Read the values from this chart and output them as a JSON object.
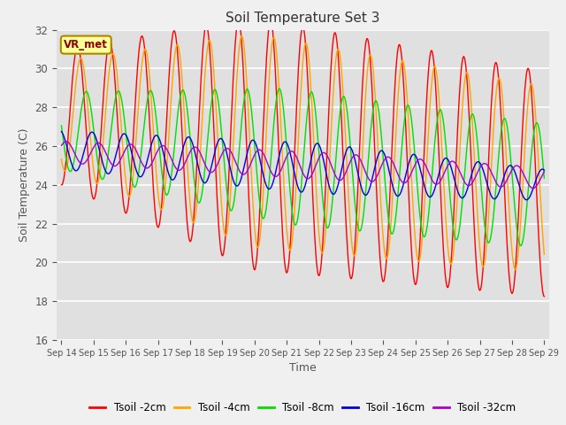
{
  "title": "Soil Temperature Set 3",
  "xlabel": "Time",
  "ylabel": "Soil Temperature (C)",
  "ylim": [
    16,
    32
  ],
  "yticks": [
    16,
    18,
    20,
    22,
    24,
    26,
    28,
    30,
    32
  ],
  "colors": {
    "Tsoil -2cm": "#ff0000",
    "Tsoil -4cm": "#ffa500",
    "Tsoil -8cm": "#00dd00",
    "Tsoil -16cm": "#0000dd",
    "Tsoil -32cm": "#aa00cc"
  },
  "label_box_text": "VR_met",
  "label_box_bg": "#ffff99",
  "label_box_edge": "#aa8800",
  "fig_bg": "#f0f0f0",
  "axes_bg": "#e0e0e0",
  "grid_color": "#ffffff",
  "start_day": 14,
  "end_day": 29,
  "n_points": 7200
}
